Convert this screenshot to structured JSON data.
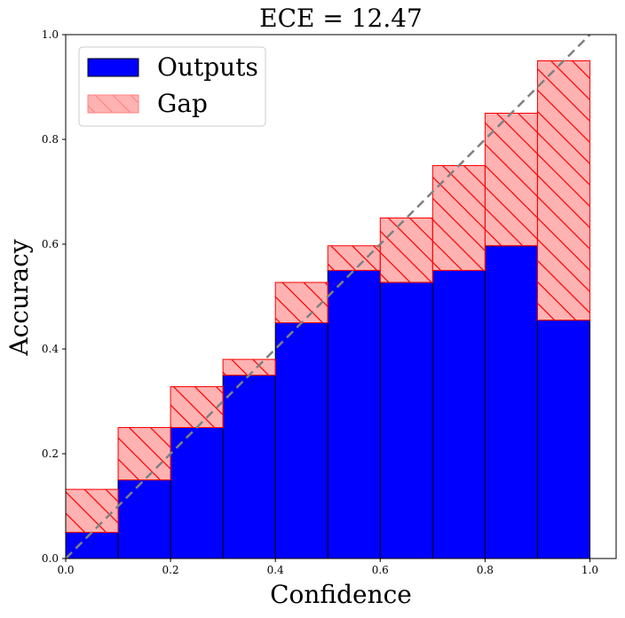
{
  "chart_data": {
    "type": "bar",
    "title": "ECE = 12.47",
    "xlabel": "Confidence",
    "ylabel": "Accuracy",
    "xlim": [
      0.0,
      1.05
    ],
    "ylim": [
      0.0,
      1.0
    ],
    "xticks": [
      "0.0",
      "0.2",
      "0.4",
      "0.6",
      "0.8",
      "1.0"
    ],
    "yticks": [
      "0.0",
      "0.2",
      "0.4",
      "0.6",
      "0.8",
      "1.0"
    ],
    "bin_width": 0.1,
    "bin_left_edges": [
      0.0,
      0.1,
      0.2,
      0.3,
      0.4,
      0.5,
      0.6,
      0.7,
      0.8,
      0.9
    ],
    "series": [
      {
        "name": "Outputs",
        "values": [
          0.05,
          0.15,
          0.25,
          0.35,
          0.45,
          0.55,
          0.527,
          0.55,
          0.597,
          0.455
        ]
      },
      {
        "name": "Gap",
        "bin_confidence": [
          0.132,
          0.25,
          0.328,
          0.38,
          0.527,
          0.597,
          0.65,
          0.75,
          0.85,
          0.95
        ]
      }
    ],
    "legend": {
      "position": "top-left",
      "entries": [
        "Outputs",
        "Gap"
      ]
    },
    "diagonal": {
      "style": "dashed",
      "from": [
        0.0,
        0.0
      ],
      "to": [
        1.0,
        1.0
      ]
    },
    "colors": {
      "outputs_fill": "#0000ff",
      "outputs_edge": "#000000",
      "gap_fill": "#ff0000",
      "gap_edge": "#ff0000",
      "diagonal": "#808080"
    }
  }
}
